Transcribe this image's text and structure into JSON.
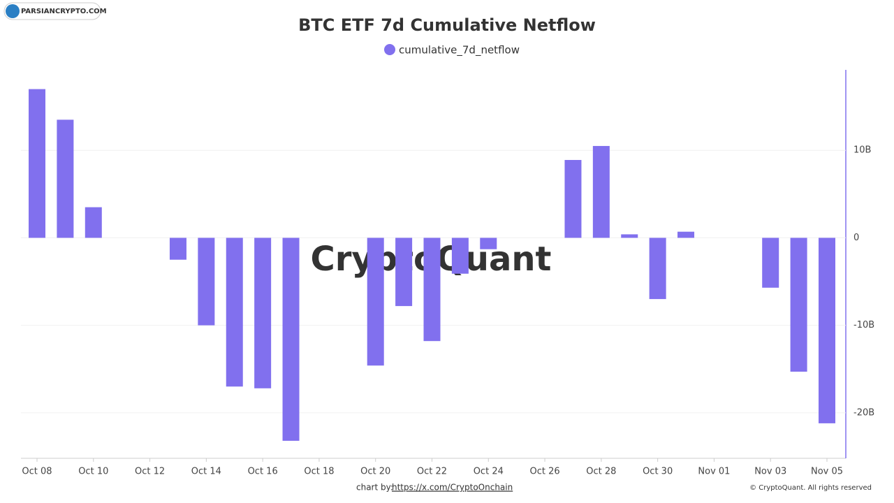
{
  "logo": "PARSIANCRYPTO.COM",
  "watermark": "CryptoQuant",
  "footer": {
    "credit": "chart by:",
    "link": "https://x.com/CryptoOnchain",
    "copyright": "© CryptoQuant. All rights reserved"
  },
  "chart_data": {
    "type": "bar",
    "title": "BTC ETF 7d Cumulative Netflow",
    "categories": [
      "Oct 08",
      null,
      "Oct 10",
      null,
      "Oct 12",
      null,
      "Oct 14",
      null,
      "Oct 16",
      null,
      "Oct 18",
      null,
      "Oct 20",
      null,
      "Oct 22",
      null,
      "Oct 24",
      null,
      "Oct 26",
      null,
      "Oct 28",
      null,
      "Oct 30",
      null,
      "Nov 01",
      null,
      "Nov 03",
      null,
      "Nov 05"
    ],
    "series": [
      {
        "name": "cumulative_7d_netflow",
        "color": "#8170ee",
        "values": [
          17.0,
          13.5,
          3.5,
          null,
          null,
          -2.5,
          -10.0,
          -17.0,
          -17.2,
          -23.2,
          null,
          null,
          -14.6,
          -7.8,
          -11.8,
          -4.1,
          -1.3,
          null,
          null,
          8.9,
          10.5,
          0.4,
          -7.0,
          0.7,
          null,
          null,
          -5.7,
          -15.3,
          -21.2
        ]
      }
    ],
    "ylim": [
      -25.2,
      19.2
    ],
    "yticks": [
      {
        "value": -20,
        "label": "-20B"
      },
      {
        "value": -10,
        "label": "-10B"
      },
      0,
      {
        "value": 10,
        "label": "10B"
      }
    ],
    "grid": true,
    "legend": "top"
  }
}
